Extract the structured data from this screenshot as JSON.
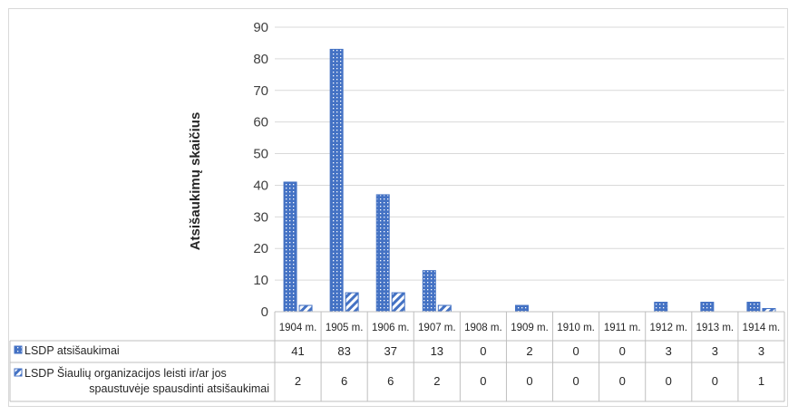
{
  "chart_data": {
    "type": "bar",
    "ylabel": "Atsišaukimų skaičius",
    "ylim": [
      0,
      90
    ],
    "yticks": [
      0,
      10,
      20,
      30,
      40,
      50,
      60,
      70,
      80,
      90
    ],
    "grid": true,
    "categories": [
      "1904 m.",
      "1905 m.",
      "1906 m.",
      "1907 m.",
      "1908 m.",
      "1909 m.",
      "1910 m.",
      "1911 m.",
      "1912 m.",
      "1913 m.",
      "1914 m."
    ],
    "series": [
      {
        "name": "LSDP atsišaukimai",
        "values": [
          41,
          83,
          37,
          13,
          0,
          2,
          0,
          0,
          3,
          3,
          3
        ],
        "color": "#4472c4",
        "pattern": "dotted"
      },
      {
        "name": "LSDP Šiaulių organizacijos leisti ir/ar jos spaustuvėje spausdinti atsišaukimai",
        "legend_lines": [
          "LSDP Šiaulių organizacijos leisti ir/ar jos",
          "spaustuvėje spausdinti atsišaukimai"
        ],
        "values": [
          2,
          6,
          6,
          2,
          0,
          0,
          0,
          0,
          0,
          0,
          1
        ],
        "color": "#4472c4",
        "pattern": "diagonal"
      }
    ],
    "data_table": true
  }
}
